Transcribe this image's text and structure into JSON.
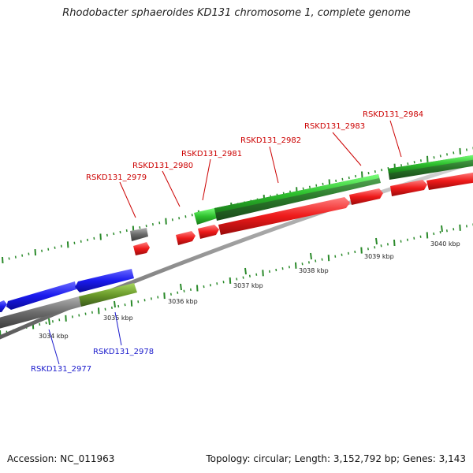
{
  "title": "Rhodobacter sphaeroides KD131 chromosome 1, complete genome",
  "footer": {
    "accession": "Accession: NC_011963",
    "summary": "Topology: circular; Length: 3,152,792 bp; Genes: 3,143"
  },
  "colors": {
    "backbone": "#9a9a9a",
    "blue_genes": "#1a1aee",
    "green_genes": "#2ec02e",
    "olive_gene": "#6a9a2a",
    "gray_genes": "#6a6a6a",
    "red_genes": "#ee1a1a",
    "tick_marks": "#2a8a2a",
    "label_red": "#cc0000",
    "label_blue": "#1a1acc"
  },
  "scale": {
    "ticks": [
      {
        "label": "3034 kbp"
      },
      {
        "label": "3035 kbp"
      },
      {
        "label": "3036 kbp"
      },
      {
        "label": "3037 kbp"
      },
      {
        "label": "3038 kbp"
      },
      {
        "label": "3039 kbp"
      },
      {
        "label": "3040 kbp"
      }
    ]
  },
  "genes": [
    {
      "id": "RSKD131_2977",
      "label_color": "blue"
    },
    {
      "id": "RSKD131_2978",
      "label_color": "blue"
    },
    {
      "id": "RSKD131_2979",
      "label_color": "red"
    },
    {
      "id": "RSKD131_2980",
      "label_color": "red"
    },
    {
      "id": "RSKD131_2981",
      "label_color": "red"
    },
    {
      "id": "RSKD131_2982",
      "label_color": "red"
    },
    {
      "id": "RSKD131_2983",
      "label_color": "red"
    },
    {
      "id": "RSKD131_2984",
      "label_color": "red"
    }
  ]
}
